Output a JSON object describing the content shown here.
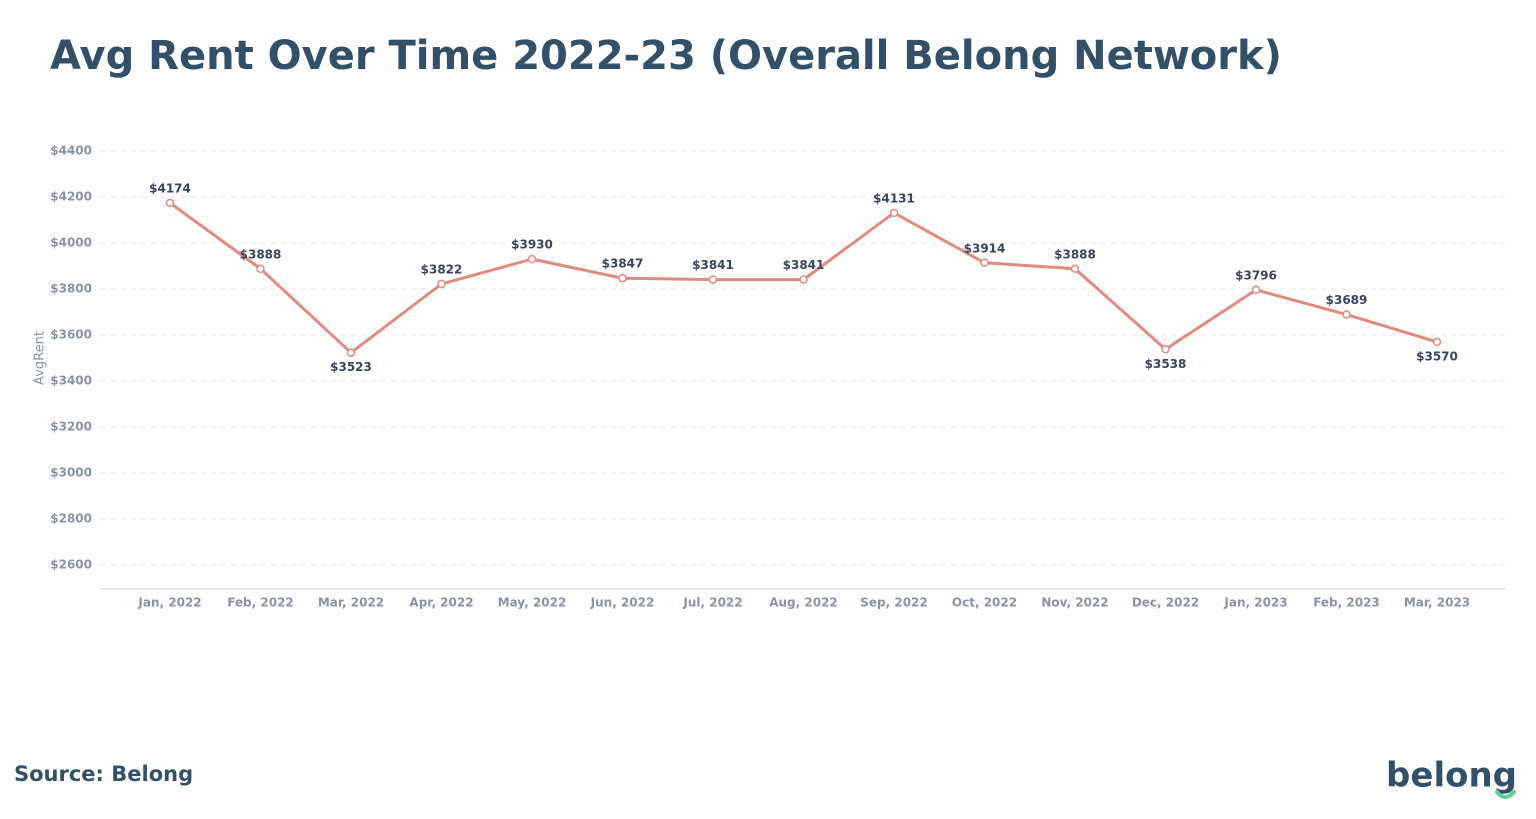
{
  "chart_data": {
    "type": "line",
    "title": "Avg Rent Over Time 2022-23 (Overall Belong Network)",
    "y_label": "AvgRent",
    "source": "Source: Belong",
    "logo": "belong",
    "categories": [
      "Jan, 2022",
      "Feb, 2022",
      "Mar, 2022",
      "Apr, 2022",
      "May, 2022",
      "Jun, 2022",
      "Jul, 2022",
      "Aug, 2022",
      "Sep, 2022",
      "Oct, 2022",
      "Nov, 2022",
      "Dec, 2022",
      "Jan, 2023",
      "Feb, 2023",
      "Mar, 2023"
    ],
    "series": [
      {
        "name": "AvgRent",
        "color": "#e08b80",
        "values": [
          4174,
          3888,
          3523,
          3822,
          3930,
          3847,
          3841,
          3841,
          4131,
          3914,
          3888,
          3538,
          3796,
          3689,
          3570
        ],
        "value_labels": [
          "$4174",
          "$3888",
          "$3523",
          "$3822",
          "$3930",
          "$3847",
          "$3841",
          "$3841",
          "$4131",
          "$3914",
          "$3888",
          "$3538",
          "$3796",
          "$3689",
          "$3570"
        ]
      }
    ],
    "ylim": [
      2500,
      4400
    ],
    "yticks": [
      {
        "value": 2600,
        "label": "$2600"
      },
      {
        "value": 2800,
        "label": "$2800"
      },
      {
        "value": 3000,
        "label": "$3000"
      },
      {
        "value": 3200,
        "label": "$3200"
      },
      {
        "value": 3400,
        "label": "$3400"
      },
      {
        "value": 3600,
        "label": "$3600"
      },
      {
        "value": 3800,
        "label": "$3800"
      },
      {
        "value": 4000,
        "label": "$4000"
      },
      {
        "value": 4200,
        "label": "$4200"
      },
      {
        "value": 4400,
        "label": "$4400"
      }
    ],
    "grid": true
  }
}
